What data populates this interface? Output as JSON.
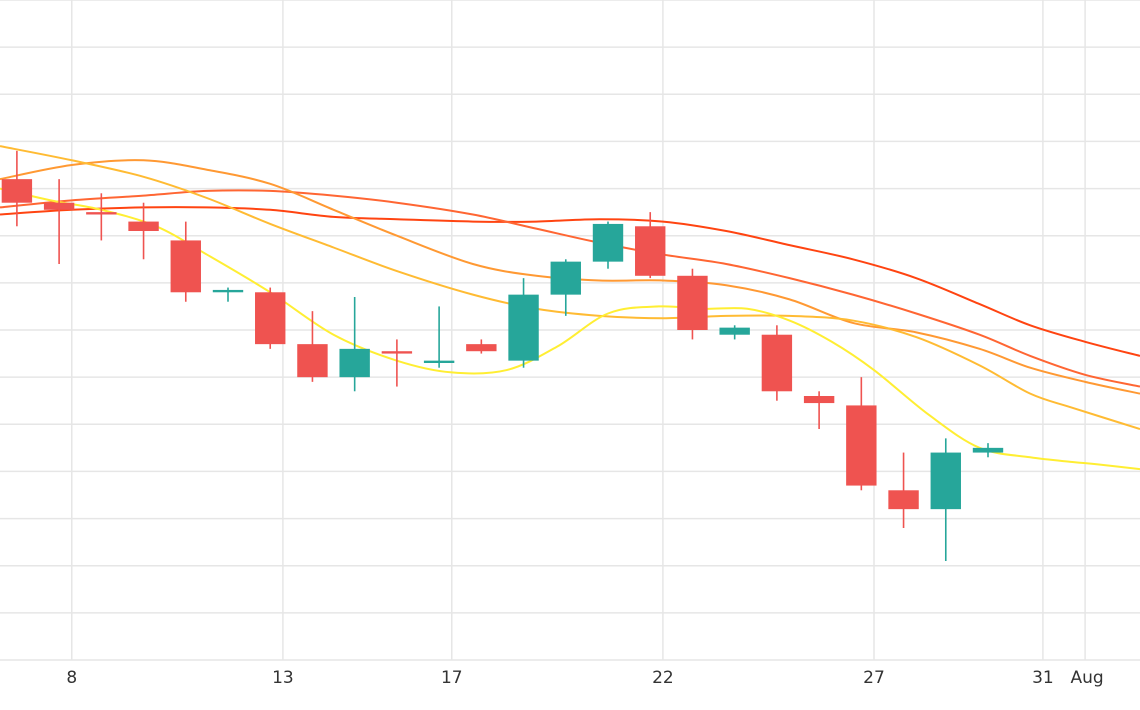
{
  "chart_data": {
    "type": "candlestick",
    "title": "",
    "xlabel": "",
    "ylabel": "",
    "grid": true,
    "x_tick_labels": [
      "8",
      "13",
      "17",
      "22",
      "27",
      "31",
      "Aug"
    ],
    "x_ticks": [
      8,
      13,
      17,
      22,
      27,
      31,
      32
    ],
    "ylim": [
      0,
      14
    ],
    "xlim": [
      6.3,
      33.3
    ],
    "colors": {
      "up": "#26a69a",
      "down": "#ef5350",
      "grid": "#e6e6e6",
      "ma_5": "#ffee33",
      "ma_10": "#ffbb33",
      "ma_20": "#ff9933",
      "ma_30": "#ff6633",
      "ma_60": "#ff4411"
    },
    "candles": [
      {
        "x": 6.7,
        "open": 10.2,
        "high": 10.8,
        "low": 9.2,
        "close": 9.7
      },
      {
        "x": 7.7,
        "open": 9.7,
        "high": 10.2,
        "low": 8.4,
        "close": 9.55
      },
      {
        "x": 8.7,
        "open": 9.5,
        "high": 9.9,
        "low": 8.9,
        "close": 9.45
      },
      {
        "x": 9.7,
        "open": 9.3,
        "high": 9.7,
        "low": 8.5,
        "close": 9.1
      },
      {
        "x": 10.7,
        "open": 8.9,
        "high": 9.3,
        "low": 7.6,
        "close": 7.8
      },
      {
        "x": 11.7,
        "open": 7.8,
        "high": 7.9,
        "low": 7.6,
        "close": 7.85
      },
      {
        "x": 12.7,
        "open": 7.8,
        "high": 7.9,
        "low": 6.6,
        "close": 6.7
      },
      {
        "x": 13.7,
        "open": 6.7,
        "high": 7.4,
        "low": 5.9,
        "close": 6.0
      },
      {
        "x": 14.7,
        "open": 6.0,
        "high": 7.7,
        "low": 5.7,
        "close": 6.6
      },
      {
        "x": 15.7,
        "open": 6.55,
        "high": 6.8,
        "low": 5.8,
        "close": 6.5
      },
      {
        "x": 16.7,
        "open": 6.3,
        "high": 7.5,
        "low": 6.2,
        "close": 6.35
      },
      {
        "x": 17.7,
        "open": 6.7,
        "high": 6.8,
        "low": 6.5,
        "close": 6.55
      },
      {
        "x": 18.7,
        "open": 6.35,
        "high": 8.1,
        "low": 6.2,
        "close": 7.75
      },
      {
        "x": 19.7,
        "open": 7.75,
        "high": 8.5,
        "low": 7.3,
        "close": 8.45
      },
      {
        "x": 20.7,
        "open": 8.45,
        "high": 9.3,
        "low": 8.3,
        "close": 9.25
      },
      {
        "x": 21.7,
        "open": 9.2,
        "high": 9.5,
        "low": 8.1,
        "close": 8.15
      },
      {
        "x": 22.7,
        "open": 8.15,
        "high": 8.3,
        "low": 6.8,
        "close": 7.0
      },
      {
        "x": 23.7,
        "open": 6.9,
        "high": 7.1,
        "low": 6.8,
        "close": 7.05
      },
      {
        "x": 24.7,
        "open": 6.9,
        "high": 7.1,
        "low": 5.5,
        "close": 5.7
      },
      {
        "x": 25.7,
        "open": 5.6,
        "high": 5.7,
        "low": 4.9,
        "close": 5.45
      },
      {
        "x": 26.7,
        "open": 5.4,
        "high": 6.0,
        "low": 3.6,
        "close": 3.7
      },
      {
        "x": 27.7,
        "open": 3.6,
        "high": 4.4,
        "low": 2.8,
        "close": 3.2
      },
      {
        "x": 28.7,
        "open": 3.2,
        "high": 4.7,
        "low": 2.1,
        "close": 4.4
      },
      {
        "x": 29.7,
        "open": 4.4,
        "high": 4.6,
        "low": 4.3,
        "close": 4.5
      }
    ],
    "series": [
      {
        "key": "ma_5",
        "x": [
          6.3,
          7.5,
          8.7,
          10.0,
          11.2,
          12.7,
          14.2,
          15.7,
          17.0,
          18.3,
          19.5,
          20.7,
          21.9,
          23.0,
          24.0,
          25.0,
          26.0,
          27.0,
          28.3,
          29.5,
          30.7,
          31.7,
          32.3,
          33.3
        ],
        "y": [
          10.0,
          9.75,
          9.55,
          9.2,
          8.6,
          7.8,
          6.9,
          6.35,
          6.1,
          6.15,
          6.65,
          7.35,
          7.5,
          7.45,
          7.45,
          7.2,
          6.75,
          6.15,
          5.2,
          4.5,
          4.3,
          4.2,
          4.15,
          4.05
        ]
      },
      {
        "key": "ma_10",
        "x": [
          6.3,
          8.0,
          9.7,
          11.2,
          12.7,
          14.2,
          15.7,
          17.5,
          19.0,
          20.5,
          22.0,
          23.5,
          25.0,
          26.5,
          28.0,
          29.5,
          30.7,
          31.7,
          33.3
        ],
        "y": [
          10.9,
          10.6,
          10.25,
          9.8,
          9.25,
          8.75,
          8.25,
          7.75,
          7.45,
          7.3,
          7.25,
          7.3,
          7.3,
          7.2,
          6.85,
          6.25,
          5.65,
          5.35,
          4.9
        ]
      },
      {
        "key": "ma_20",
        "x": [
          6.3,
          8.0,
          9.7,
          11.2,
          12.7,
          14.2,
          15.7,
          17.5,
          19.0,
          20.5,
          22.0,
          23.5,
          25.0,
          26.5,
          28.0,
          29.5,
          30.7,
          32.0,
          33.3
        ],
        "y": [
          10.2,
          10.5,
          10.6,
          10.4,
          10.1,
          9.55,
          9.0,
          8.4,
          8.15,
          8.05,
          8.05,
          7.95,
          7.65,
          7.15,
          6.95,
          6.6,
          6.2,
          5.9,
          5.65
        ]
      },
      {
        "key": "ma_30",
        "x": [
          6.3,
          8.0,
          9.7,
          11.2,
          12.7,
          14.2,
          15.7,
          17.5,
          19.0,
          20.5,
          22.0,
          23.5,
          25.0,
          26.5,
          28.0,
          29.5,
          30.7,
          32.0,
          33.3
        ],
        "y": [
          9.6,
          9.75,
          9.85,
          9.95,
          9.95,
          9.85,
          9.7,
          9.45,
          9.15,
          8.85,
          8.6,
          8.4,
          8.1,
          7.75,
          7.35,
          6.9,
          6.45,
          6.05,
          5.8
        ]
      },
      {
        "key": "ma_60",
        "x": [
          6.3,
          8.0,
          9.7,
          11.2,
          12.7,
          14.2,
          15.7,
          17.5,
          19.0,
          20.5,
          22.0,
          23.5,
          25.0,
          26.5,
          28.0,
          29.5,
          30.7,
          32.0,
          33.3
        ],
        "y": [
          9.45,
          9.55,
          9.6,
          9.6,
          9.55,
          9.4,
          9.35,
          9.3,
          9.3,
          9.35,
          9.3,
          9.1,
          8.8,
          8.5,
          8.1,
          7.55,
          7.1,
          6.75,
          6.45
        ]
      }
    ]
  }
}
